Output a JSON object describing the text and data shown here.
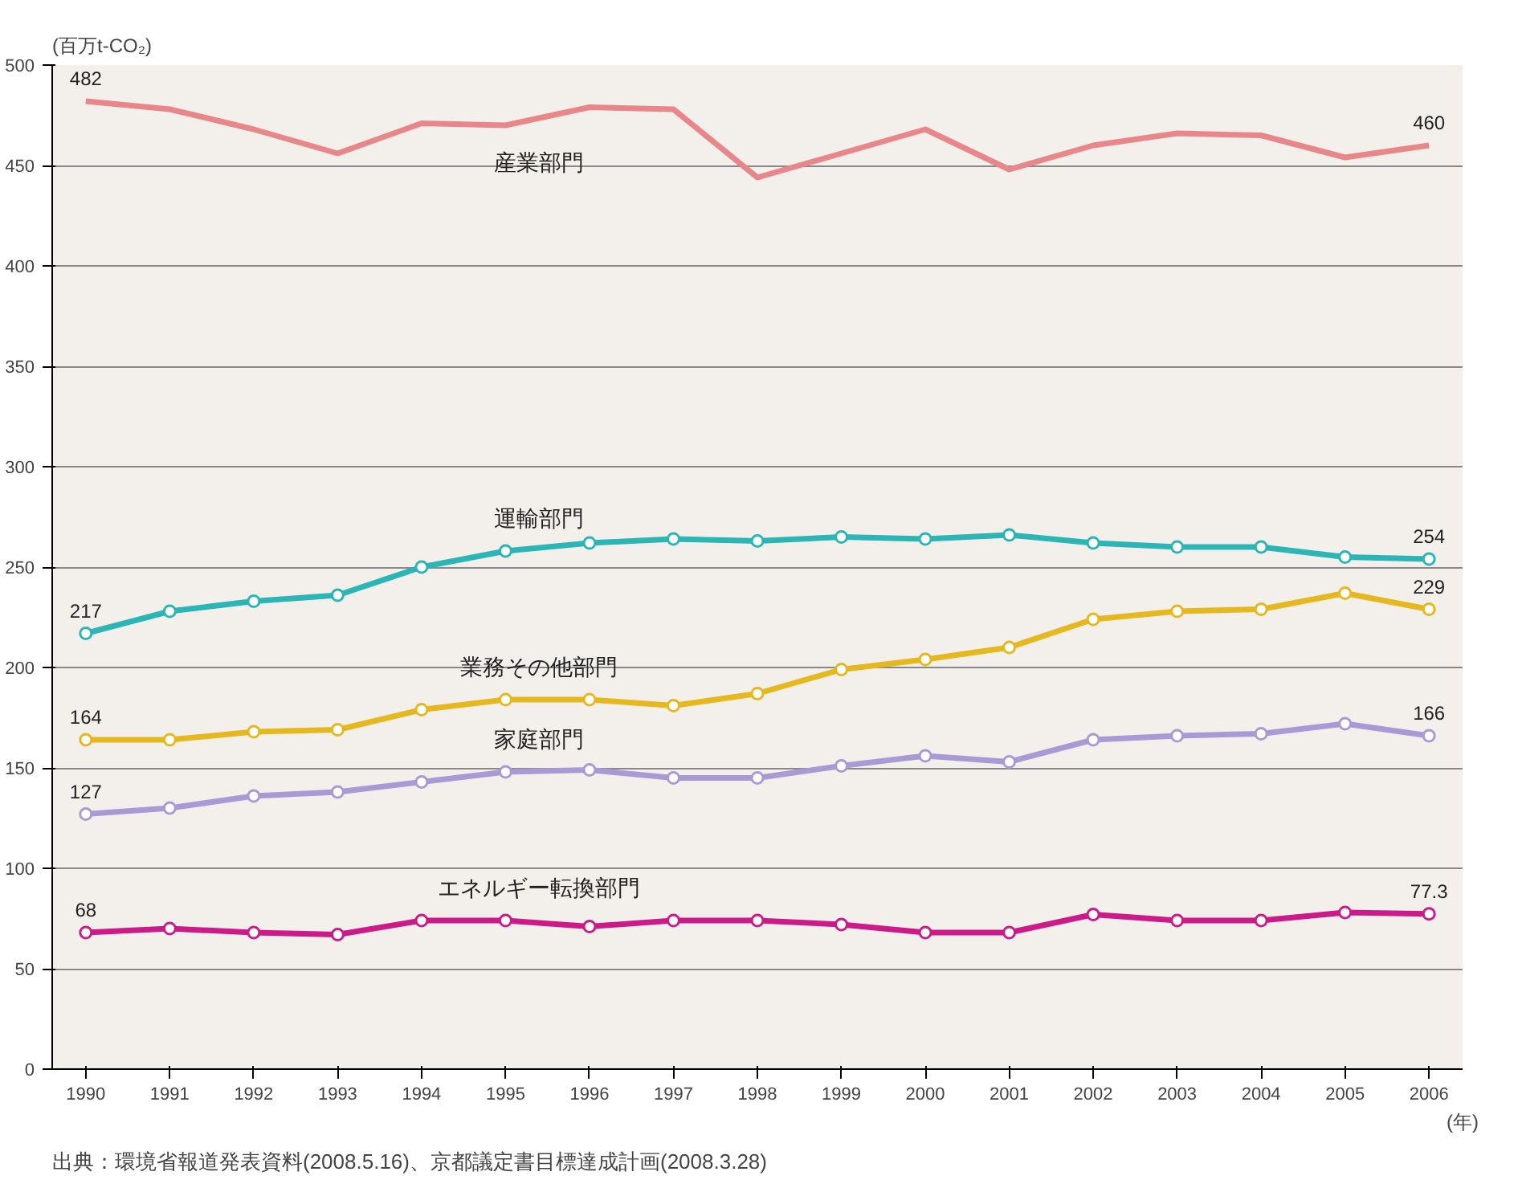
{
  "chart_data": {
    "type": "line",
    "ylabel": "(百万t-CO₂)",
    "xlabel": "(年)",
    "categories": [
      "1990",
      "1991",
      "1992",
      "1993",
      "1994",
      "1995",
      "1996",
      "1997",
      "1998",
      "1999",
      "2000",
      "2001",
      "2002",
      "2003",
      "2004",
      "2005",
      "2006"
    ],
    "ylim": [
      0,
      500
    ],
    "yticks": [
      0,
      50,
      100,
      150,
      200,
      250,
      300,
      350,
      400,
      450,
      500
    ],
    "grid": "y",
    "marker": "circle",
    "series": [
      {
        "name": "産業部門",
        "color": "#e8868a",
        "marker": "none",
        "values": [
          482,
          478,
          468,
          456,
          471,
          470,
          479,
          478,
          444,
          456,
          468,
          448,
          460,
          466,
          465,
          454,
          460
        ],
        "value_labels": [
          "482",
          null,
          null,
          null,
          null,
          null,
          null,
          null,
          null,
          null,
          null,
          null,
          null,
          null,
          null,
          null,
          "460"
        ]
      },
      {
        "name": "運輸部門",
        "color": "#2bb5b5",
        "values": [
          217,
          228,
          233,
          236,
          250,
          258,
          262,
          264,
          263,
          265,
          264,
          266,
          262,
          260,
          260,
          255,
          254
        ],
        "value_labels": [
          "217",
          null,
          null,
          null,
          null,
          null,
          null,
          null,
          null,
          null,
          null,
          null,
          null,
          null,
          null,
          null,
          "254"
        ]
      },
      {
        "name": "業務その他部門",
        "color": "#e6b820",
        "values": [
          164,
          164,
          168,
          169,
          179,
          184,
          184,
          181,
          187,
          199,
          204,
          210,
          224,
          228,
          229,
          237,
          229
        ],
        "value_labels": [
          "164",
          null,
          null,
          null,
          null,
          null,
          null,
          null,
          null,
          null,
          null,
          null,
          null,
          null,
          null,
          null,
          "229"
        ]
      },
      {
        "name": "家庭部門",
        "color": "#a99ad6",
        "values": [
          127,
          130,
          136,
          138,
          143,
          148,
          149,
          145,
          145,
          151,
          156,
          153,
          164,
          166,
          167,
          172,
          166
        ],
        "value_labels": [
          "127",
          null,
          null,
          null,
          null,
          null,
          null,
          null,
          null,
          null,
          null,
          null,
          null,
          null,
          null,
          null,
          "166"
        ]
      },
      {
        "name": "エネルギー転換部門",
        "color": "#cc1a88",
        "values": [
          68,
          70,
          68,
          67,
          74,
          74,
          71,
          74,
          74,
          72,
          68,
          68,
          77,
          74,
          74,
          78,
          77.3
        ],
        "value_labels": [
          "68",
          null,
          null,
          null,
          null,
          null,
          null,
          null,
          null,
          null,
          null,
          null,
          null,
          null,
          null,
          null,
          "77.3"
        ]
      }
    ],
    "annotations": [
      "出典：環境省報道発表資料(2008.5.16)、京都議定書目標達成計画(2008.3.28)"
    ]
  }
}
